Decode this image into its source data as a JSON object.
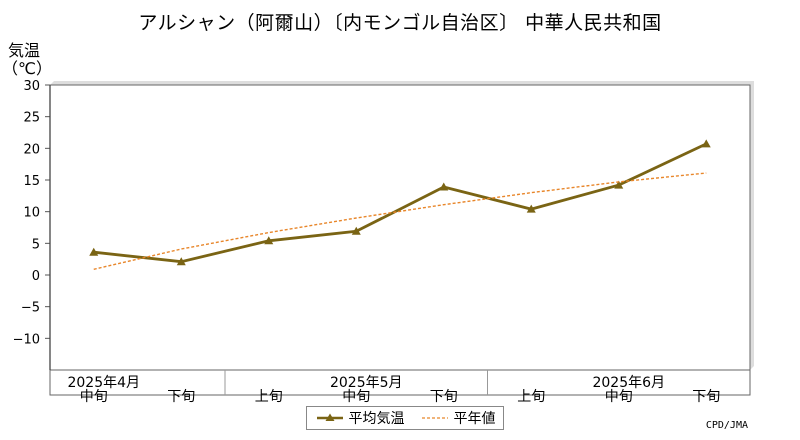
{
  "chart_data": {
    "type": "line",
    "title": "アルシャン（阿爾山）〔内モンゴル自治区〕 中華人民共和国",
    "ylabel": "気温",
    "yunit": "（℃）",
    "ylim": [
      -15,
      30
    ],
    "yticks": [
      30,
      25,
      20,
      15,
      10,
      5,
      0,
      -5,
      -10
    ],
    "grid": true,
    "categories": [
      "中旬",
      "下旬",
      "上旬",
      "中旬",
      "下旬",
      "上旬",
      "中旬",
      "下旬"
    ],
    "month_labels": [
      {
        "label": "2025年4月",
        "at_index": 0
      },
      {
        "label": "2025年5月",
        "at_index": 3
      },
      {
        "label": "2025年6月",
        "at_index": 6
      }
    ],
    "series": [
      {
        "name": "平均気温",
        "color": "#7a6414",
        "marker": "triangle",
        "values": [
          3.6,
          2.1,
          5.4,
          6.9,
          13.9,
          10.4,
          14.2,
          20.7
        ]
      },
      {
        "name": "平年値",
        "color": "#e8862a",
        "style": "dashed",
        "values": [
          0.9,
          4.1,
          6.7,
          9.0,
          11.1,
          13.0,
          14.7,
          16.1
        ]
      }
    ],
    "legend": "bottom-center",
    "credit": "CPD/JMA"
  }
}
